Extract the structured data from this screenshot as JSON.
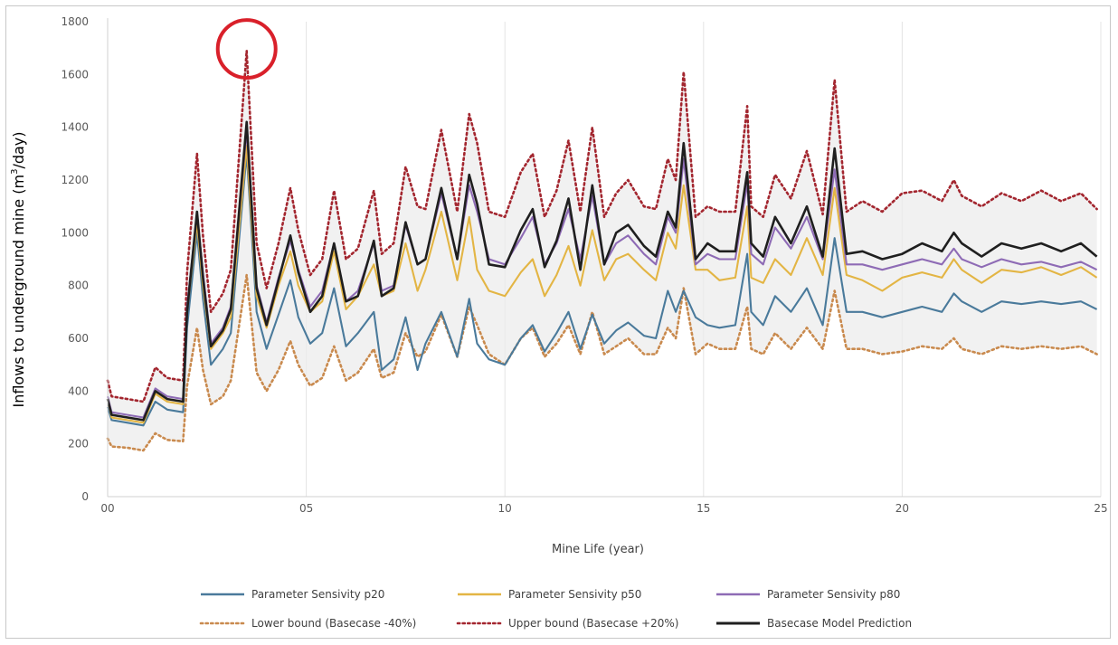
{
  "chart_data": {
    "type": "line",
    "title": "",
    "xlabel": "Mine Life (year)",
    "ylabel_main": "Inflows to underground mine (m",
    "ylabel_sup": "3",
    "ylabel_tail": "/day)",
    "xlim": [
      0,
      25
    ],
    "ylim": [
      0,
      1800
    ],
    "x_ticks": [
      {
        "v": 0,
        "label": "00"
      },
      {
        "v": 5,
        "label": "05"
      },
      {
        "v": 10,
        "label": "10"
      },
      {
        "v": 15,
        "label": "15"
      },
      {
        "v": 20,
        "label": "20"
      },
      {
        "v": 25,
        "label": "25"
      }
    ],
    "y_ticks": [
      {
        "v": 0,
        "label": "0"
      },
      {
        "v": 200,
        "label": "200"
      },
      {
        "v": 400,
        "label": "400"
      },
      {
        "v": 600,
        "label": "600"
      },
      {
        "v": 800,
        "label": "800"
      },
      {
        "v": 1000,
        "label": "1000"
      },
      {
        "v": 1200,
        "label": "1200"
      },
      {
        "v": 1400,
        "label": "1400"
      },
      {
        "v": 1600,
        "label": "1600"
      },
      {
        "v": 1800,
        "label": "1800"
      }
    ],
    "grid": "vertical",
    "legend_position": "bottom",
    "shaded_band": "between lower and upper bound",
    "highlight_circle": {
      "x": 3.5,
      "y": 1690,
      "color": "#d9202a"
    },
    "series": [
      {
        "name": "Parameter Sensivity p20",
        "color": "#4a7a9b",
        "style": "solid",
        "x": [
          0.0,
          0.1,
          0.5,
          0.9,
          1.2,
          1.5,
          1.9,
          2.0,
          2.25,
          2.4,
          2.6,
          2.9,
          3.1,
          3.5,
          3.75,
          4.0,
          4.3,
          4.6,
          4.8,
          5.1,
          5.4,
          5.7,
          6.0,
          6.3,
          6.7,
          6.9,
          7.2,
          7.5,
          7.8,
          8.0,
          8.4,
          8.8,
          9.1,
          9.3,
          9.6,
          10.0,
          10.4,
          10.7,
          11.0,
          11.3,
          11.6,
          11.9,
          12.2,
          12.5,
          12.8,
          13.1,
          13.5,
          13.8,
          14.1,
          14.3,
          14.5,
          14.8,
          15.1,
          15.4,
          15.8,
          16.1,
          16.2,
          16.5,
          16.8,
          17.2,
          17.6,
          18.0,
          18.3,
          18.6,
          19.0,
          19.5,
          20.0,
          20.5,
          21.0,
          21.3,
          21.5,
          22.0,
          22.5,
          23.0,
          23.5,
          24.0,
          24.5,
          24.9
        ],
        "y": [
          340,
          290,
          280,
          270,
          360,
          330,
          320,
          640,
          1000,
          750,
          500,
          560,
          620,
          1300,
          700,
          560,
          690,
          820,
          680,
          580,
          620,
          790,
          570,
          620,
          700,
          480,
          520,
          680,
          480,
          580,
          700,
          530,
          750,
          580,
          520,
          500,
          600,
          650,
          550,
          620,
          700,
          560,
          690,
          580,
          630,
          660,
          610,
          600,
          780,
          700,
          780,
          680,
          650,
          640,
          650,
          920,
          700,
          650,
          760,
          700,
          790,
          650,
          980,
          700,
          700,
          680,
          700,
          720,
          700,
          770,
          740,
          700,
          740,
          730,
          740,
          730,
          740,
          710
        ]
      },
      {
        "name": "Parameter Sensivity p50",
        "color": "#e3b544",
        "style": "solid",
        "x": [
          0.0,
          0.1,
          0.5,
          0.9,
          1.2,
          1.5,
          1.9,
          2.0,
          2.25,
          2.4,
          2.6,
          2.9,
          3.1,
          3.5,
          3.75,
          4.0,
          4.3,
          4.6,
          4.8,
          5.1,
          5.4,
          5.7,
          6.0,
          6.3,
          6.7,
          6.9,
          7.2,
          7.5,
          7.8,
          8.0,
          8.4,
          8.8,
          9.1,
          9.3,
          9.6,
          10.0,
          10.4,
          10.7,
          11.0,
          11.3,
          11.6,
          11.9,
          12.2,
          12.5,
          12.8,
          13.1,
          13.5,
          13.8,
          14.1,
          14.3,
          14.5,
          14.8,
          15.1,
          15.4,
          15.8,
          16.1,
          16.2,
          16.5,
          16.8,
          17.2,
          17.6,
          18.0,
          18.3,
          18.6,
          19.0,
          19.5,
          20.0,
          20.5,
          21.0,
          21.3,
          21.5,
          22.0,
          22.5,
          23.0,
          23.5,
          24.0,
          24.5,
          24.9
        ],
        "y": [
          370,
          300,
          290,
          280,
          390,
          360,
          350,
          700,
          1040,
          800,
          560,
          620,
          680,
          1330,
          760,
          640,
          800,
          930,
          800,
          700,
          740,
          930,
          710,
          760,
          880,
          760,
          780,
          960,
          780,
          860,
          1080,
          820,
          1060,
          860,
          780,
          760,
          850,
          900,
          760,
          840,
          950,
          800,
          1010,
          820,
          900,
          920,
          860,
          820,
          1000,
          940,
          1180,
          860,
          860,
          820,
          830,
          1100,
          830,
          810,
          900,
          840,
          980,
          840,
          1170,
          840,
          820,
          780,
          830,
          850,
          830,
          900,
          860,
          810,
          860,
          850,
          870,
          840,
          870,
          830
        ]
      },
      {
        "name": "Parameter Sensivity p80",
        "color": "#8e6bb5",
        "style": "solid",
        "x": [
          0.0,
          0.1,
          0.5,
          0.9,
          1.2,
          1.5,
          1.9,
          2.0,
          2.25,
          2.4,
          2.6,
          2.9,
          3.1,
          3.5,
          3.75,
          4.0,
          4.3,
          4.6,
          4.8,
          5.1,
          5.4,
          5.7,
          6.0,
          6.3,
          6.7,
          6.9,
          7.2,
          7.5,
          7.8,
          8.0,
          8.4,
          8.8,
          9.1,
          9.3,
          9.6,
          10.0,
          10.4,
          10.7,
          11.0,
          11.3,
          11.6,
          11.9,
          12.2,
          12.5,
          12.8,
          13.1,
          13.5,
          13.8,
          14.1,
          14.3,
          14.5,
          14.8,
          15.1,
          15.4,
          15.8,
          16.1,
          16.2,
          16.5,
          16.8,
          17.2,
          17.6,
          18.0,
          18.3,
          18.6,
          19.0,
          19.5,
          20.0,
          20.5,
          21.0,
          21.3,
          21.5,
          22.0,
          22.5,
          23.0,
          23.5,
          24.0,
          24.5,
          24.9
        ],
        "y": [
          380,
          320,
          310,
          300,
          410,
          380,
          370,
          720,
          1070,
          850,
          580,
          640,
          720,
          1390,
          800,
          660,
          830,
          970,
          860,
          720,
          780,
          960,
          740,
          780,
          960,
          780,
          800,
          1030,
          880,
          900,
          1150,
          900,
          1180,
          1080,
          900,
          880,
          980,
          1060,
          880,
          960,
          1090,
          900,
          1140,
          880,
          960,
          990,
          920,
          880,
          1060,
          1000,
          1280,
          880,
          920,
          900,
          900,
          1190,
          920,
          880,
          1020,
          940,
          1060,
          900,
          1240,
          880,
          880,
          860,
          880,
          900,
          880,
          940,
          900,
          870,
          900,
          880,
          890,
          870,
          890,
          860
        ]
      },
      {
        "name": "Lower bound (Basecase -40%)",
        "color": "#c98a4e",
        "style": "dotted",
        "x": [
          0.0,
          0.1,
          0.5,
          0.9,
          1.2,
          1.5,
          1.9,
          2.0,
          2.25,
          2.4,
          2.6,
          2.9,
          3.1,
          3.5,
          3.75,
          4.0,
          4.3,
          4.6,
          4.8,
          5.1,
          5.4,
          5.7,
          6.0,
          6.3,
          6.7,
          6.9,
          7.2,
          7.5,
          7.8,
          8.0,
          8.4,
          8.8,
          9.1,
          9.3,
          9.6,
          10.0,
          10.4,
          10.7,
          11.0,
          11.3,
          11.6,
          11.9,
          12.2,
          12.5,
          12.8,
          13.1,
          13.5,
          13.8,
          14.1,
          14.3,
          14.5,
          14.8,
          15.1,
          15.4,
          15.8,
          16.1,
          16.2,
          16.5,
          16.8,
          17.2,
          17.6,
          18.0,
          18.3,
          18.6,
          19.0,
          19.5,
          20.0,
          20.5,
          21.0,
          21.3,
          21.5,
          22.0,
          22.5,
          23.0,
          23.5,
          24.0,
          24.5,
          24.9
        ],
        "y": [
          220,
          190,
          185,
          175,
          240,
          215,
          210,
          420,
          640,
          480,
          350,
          380,
          440,
          840,
          470,
          400,
          480,
          590,
          500,
          420,
          450,
          570,
          440,
          470,
          560,
          450,
          470,
          620,
          530,
          550,
          690,
          530,
          720,
          650,
          540,
          500,
          600,
          640,
          530,
          580,
          650,
          540,
          700,
          540,
          570,
          600,
          540,
          540,
          640,
          600,
          790,
          540,
          580,
          560,
          560,
          720,
          560,
          540,
          620,
          560,
          640,
          560,
          780,
          560,
          560,
          540,
          550,
          570,
          560,
          600,
          560,
          540,
          570,
          560,
          570,
          560,
          570,
          540
        ]
      },
      {
        "name": "Upper bound (Basecase +20%)",
        "color": "#a3262f",
        "style": "dotted",
        "x": [
          0.0,
          0.1,
          0.5,
          0.9,
          1.2,
          1.5,
          1.9,
          2.0,
          2.25,
          2.4,
          2.6,
          2.9,
          3.1,
          3.5,
          3.75,
          4.0,
          4.3,
          4.6,
          4.8,
          5.1,
          5.4,
          5.7,
          6.0,
          6.3,
          6.7,
          6.9,
          7.2,
          7.5,
          7.8,
          8.0,
          8.4,
          8.8,
          9.1,
          9.3,
          9.6,
          10.0,
          10.4,
          10.7,
          11.0,
          11.3,
          11.6,
          11.9,
          12.2,
          12.5,
          12.8,
          13.1,
          13.5,
          13.8,
          14.1,
          14.3,
          14.5,
          14.8,
          15.1,
          15.4,
          15.8,
          16.1,
          16.2,
          16.5,
          16.8,
          17.2,
          17.6,
          18.0,
          18.3,
          18.6,
          19.0,
          19.5,
          20.0,
          20.5,
          21.0,
          21.3,
          21.5,
          22.0,
          22.5,
          23.0,
          23.5,
          24.0,
          24.5,
          24.9
        ],
        "y": [
          440,
          380,
          370,
          360,
          490,
          450,
          440,
          850,
          1300,
          990,
          700,
          770,
          860,
          1690,
          960,
          790,
          960,
          1170,
          1010,
          840,
          900,
          1160,
          900,
          940,
          1160,
          920,
          960,
          1250,
          1100,
          1090,
          1390,
          1080,
          1450,
          1340,
          1080,
          1060,
          1230,
          1300,
          1060,
          1160,
          1350,
          1080,
          1400,
          1060,
          1150,
          1200,
          1100,
          1090,
          1280,
          1200,
          1610,
          1060,
          1100,
          1080,
          1080,
          1480,
          1100,
          1060,
          1220,
          1130,
          1310,
          1070,
          1580,
          1080,
          1120,
          1080,
          1150,
          1160,
          1120,
          1200,
          1140,
          1100,
          1150,
          1120,
          1160,
          1120,
          1150,
          1090
        ]
      },
      {
        "name": "Basecase Model Prediction",
        "color": "#1f1f1f",
        "style": "solid",
        "x": [
          0.0,
          0.1,
          0.5,
          0.9,
          1.2,
          1.5,
          1.9,
          2.0,
          2.25,
          2.4,
          2.6,
          2.9,
          3.1,
          3.5,
          3.75,
          4.0,
          4.3,
          4.6,
          4.8,
          5.1,
          5.4,
          5.7,
          6.0,
          6.3,
          6.7,
          6.9,
          7.2,
          7.5,
          7.8,
          8.0,
          8.4,
          8.8,
          9.1,
          9.3,
          9.6,
          10.0,
          10.4,
          10.7,
          11.0,
          11.3,
          11.6,
          11.9,
          12.2,
          12.5,
          12.8,
          13.1,
          13.5,
          13.8,
          14.1,
          14.3,
          14.5,
          14.8,
          15.1,
          15.4,
          15.8,
          16.1,
          16.2,
          16.5,
          16.8,
          17.2,
          17.6,
          18.0,
          18.3,
          18.6,
          19.0,
          19.5,
          20.0,
          20.5,
          21.0,
          21.3,
          21.5,
          22.0,
          22.5,
          23.0,
          23.5,
          24.0,
          24.5,
          24.9
        ],
        "y": [
          370,
          310,
          300,
          290,
          400,
          370,
          360,
          700,
          1080,
          830,
          570,
          630,
          710,
          1420,
          790,
          650,
          820,
          990,
          850,
          700,
          760,
          960,
          740,
          760,
          970,
          760,
          790,
          1040,
          880,
          900,
          1170,
          900,
          1220,
          1110,
          880,
          870,
          1010,
          1090,
          870,
          970,
          1130,
          860,
          1180,
          880,
          1000,
          1030,
          950,
          910,
          1080,
          1020,
          1340,
          900,
          960,
          930,
          930,
          1230,
          960,
          910,
          1060,
          960,
          1100,
          910,
          1320,
          920,
          930,
          900,
          920,
          960,
          930,
          1000,
          960,
          910,
          960,
          940,
          960,
          930,
          960,
          910
        ]
      }
    ]
  }
}
